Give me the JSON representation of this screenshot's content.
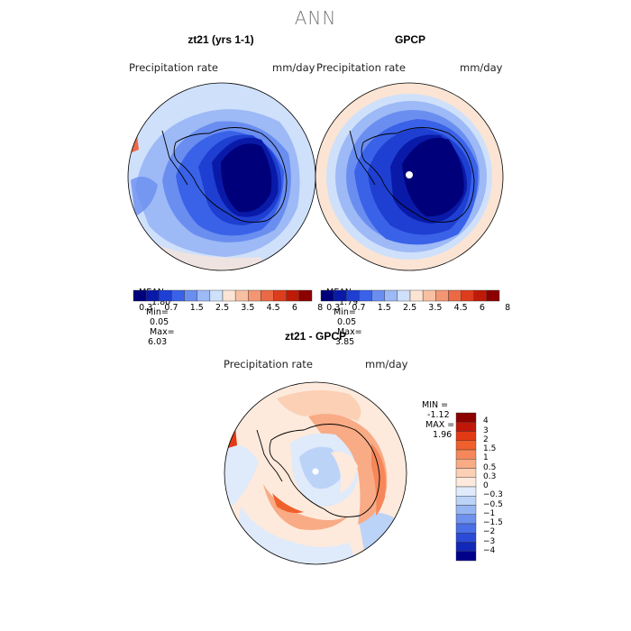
{
  "title": "ANN",
  "panels": {
    "model": {
      "title": "zt21 (yrs 1-1)",
      "variable": "Precipitation rate",
      "units": "mm/day",
      "mean_label": "MEAN=",
      "mean": "1.80",
      "min_label": "Min=",
      "min": "0.05",
      "max_label": "Max=",
      "max": "6.03"
    },
    "obs": {
      "title": "GPCP",
      "variable": "Precipitation rate",
      "units": "mm/day",
      "mean_label": "MEAN=",
      "mean": "1.79",
      "min_label": "Min=",
      "min": "0.05",
      "max_label": "Max=",
      "max": "3.85"
    },
    "diff": {
      "title": "zt21 - GPCP",
      "variable": "Precipitation rate",
      "units": "mm/day",
      "min_label": "MIN =",
      "min": "-1.12",
      "max_label": "MAX =",
      "max": "1.96"
    }
  },
  "colorbar_abs": {
    "colors": [
      "#00007a",
      "#0a1aa8",
      "#1e3fd1",
      "#3a62e8",
      "#6a8ef0",
      "#9db9f6",
      "#cfe0fb",
      "#fbe4d4",
      "#f7c0a2",
      "#f29673",
      "#ea6a45",
      "#dc3d1d",
      "#bf1a08",
      "#8c0000"
    ],
    "tick_labels": [
      "0.3",
      "0.7",
      "1.5",
      "2.5",
      "3.5",
      "4.5",
      "6",
      "8"
    ]
  },
  "colorbar_diff": {
    "colors": [
      "#8c0000",
      "#c0170a",
      "#e23a14",
      "#f0602c",
      "#f5875a",
      "#f8ab85",
      "#fbd0b5",
      "#fdeadc",
      "#dfeafb",
      "#bcd3f8",
      "#96b6f3",
      "#6e92ed",
      "#4a6fe6",
      "#2b4ad8",
      "#1228b8",
      "#00008a"
    ],
    "tick_labels": [
      "4",
      "3",
      "2",
      "1.5",
      "1",
      "0.5",
      "0.3",
      "0",
      "−0.3",
      "−0.5",
      "−1",
      "−1.5",
      "−2",
      "−3",
      "−4"
    ]
  }
}
